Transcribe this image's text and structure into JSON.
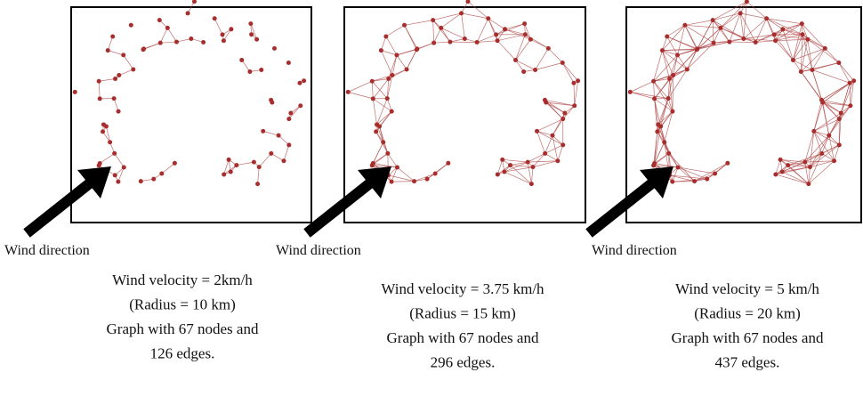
{
  "panels": [
    {
      "wind_label": "Wind direction",
      "caption": [
        "Wind velocity = 2km/h",
        "(Radius = 10 km)",
        "Graph with 67 nodes and",
        "126 edges."
      ]
    },
    {
      "wind_label": "Wind direction",
      "caption": [
        "Wind velocity = 3.75 km/h",
        "(Radius = 15 km)",
        "Graph with 67 nodes and",
        "296 edges."
      ]
    },
    {
      "wind_label": "Wind direction",
      "caption": [
        "Wind velocity = 5 km/h",
        "(Radius = 20 km)",
        "Graph with 67 nodes and",
        "437 edges."
      ]
    }
  ]
}
